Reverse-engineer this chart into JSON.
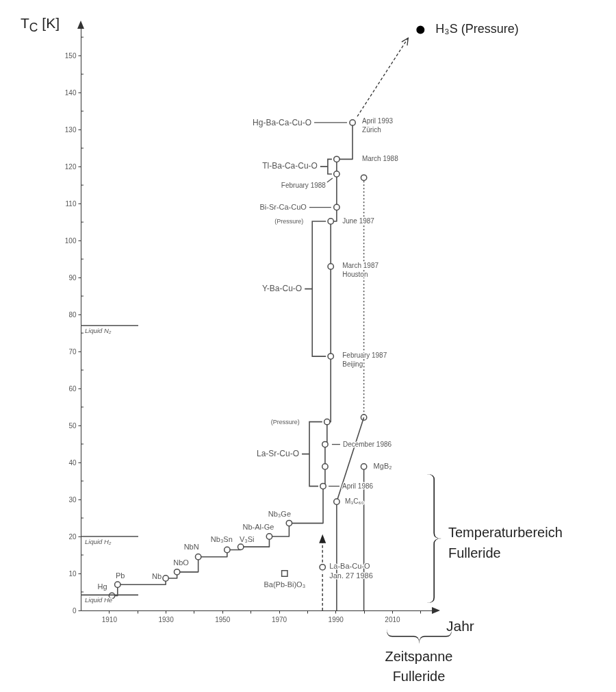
{
  "chart_data": {
    "type": "line",
    "xlabel": "Jahr",
    "ylabel": "T$_{C}$ [K]",
    "xlim": [
      1900,
      2025
    ],
    "ylim": [
      0,
      158
    ],
    "xticks": [
      1910,
      {
        "value": 1920,
        "label": null
      },
      1930,
      {
        "value": 1940,
        "label": null
      },
      1950,
      {
        "value": 1960,
        "label": null
      },
      1970,
      {
        "value": 1980,
        "label": null
      },
      1990,
      {
        "value": 2000,
        "label": null
      },
      2010,
      {
        "value": 2020,
        "label": null
      }
    ],
    "yticks": [
      0,
      {
        "value": 5,
        "label": null
      },
      10,
      {
        "value": 15,
        "label": null
      },
      20,
      {
        "value": 25,
        "label": null
      },
      30,
      {
        "value": 35,
        "label": null
      },
      40,
      {
        "value": 45,
        "label": null
      },
      50,
      {
        "value": 55,
        "label": null
      },
      60,
      {
        "value": 65,
        "label": null
      },
      70,
      {
        "value": 75,
        "label": null
      },
      80,
      {
        "value": 85,
        "label": null
      },
      90,
      {
        "value": 95,
        "label": null
      },
      100,
      {
        "value": 105,
        "label": null
      },
      110,
      {
        "value": 115,
        "label": null
      },
      120,
      {
        "value": 125,
        "label": null
      },
      130,
      {
        "value": 135,
        "label": null
      },
      140,
      {
        "value": 145,
        "label": null
      },
      150,
      {
        "value": 155,
        "label": null
      }
    ],
    "series": [
      {
        "type": "step",
        "color": "#4d4d4d",
        "marker": "circle",
        "line_style": "solid",
        "x": [
          1911,
          1913,
          1930,
          1934,
          1941.5,
          1951.7,
          1956.5,
          1966.6,
          1973.6,
          1985.6,
          1986.3,
          1986.3,
          1987,
          1988.3,
          1988.3,
          1988.3,
          1990.4,
          1990.4,
          1990.4,
          1996
        ],
        "values": [
          4,
          7,
          8.7,
          10.4,
          14.5,
          16.4,
          17.2,
          20,
          23.6,
          33.6,
          38.9,
          44.9,
          51,
          68.7,
          93,
          105.2,
          109,
          118,
          122,
          131.9
        ]
      },
      {
        "type": "line",
        "color": "#4d4d4d",
        "marker": "circle",
        "line_style": "dotted",
        "x": [
          2000,
          2000
        ],
        "values": [
          117,
          52.2
        ]
      },
      {
        "type": "line",
        "color": "#4d4d4d",
        "line_style": "solid",
        "x": [
          2000,
          1990.4
        ],
        "values": [
          52.2,
          29.4
        ]
      },
      {
        "type": "lollipop",
        "color": "#4d4d4d",
        "marker": "circle",
        "x": [
          1990.4,
          2000
        ],
        "values": [
          29.4,
          38.9
        ]
      },
      {
        "type": "line",
        "color": "#4d4d4d",
        "marker": "circle",
        "x": [
          1985.4
        ],
        "values": [
          11.7
        ]
      },
      {
        "type": "line",
        "color": "#4d4d4d",
        "marker": "square",
        "x": [
          1972
        ],
        "values": [
          10
        ]
      },
      {
        "type": "scatter",
        "color": "#000000",
        "marker": "circle",
        "x": [
          2020
        ],
        "values": [
          157
        ]
      }
    ],
    "ref_lines": [
      {
        "axis": "y",
        "value": 4.2,
        "label": "Liquid He",
        "color": "#4d4d4d"
      },
      {
        "axis": "y",
        "value": 20,
        "label": "Liquid H₂",
        "color": "#4d4d4d"
      },
      {
        "axis": "y",
        "value": 77,
        "label": "Liquid N₂",
        "color": "#4d4d4d"
      }
    ],
    "annotations": [
      {
        "text": "Hg",
        "x": 1911,
        "y": 4
      },
      {
        "text": "Pb",
        "x": 1913,
        "y": 7
      },
      {
        "text": "Nb",
        "x": 1930,
        "y": 8.7
      },
      {
        "text": "NbO",
        "x": 1934,
        "y": 10.4
      },
      {
        "text": "NbN",
        "x": 1941.5,
        "y": 14.5
      },
      {
        "text": "Nb₃Sn",
        "x": 1951.7,
        "y": 16.4
      },
      {
        "text": "V₃Si",
        "x": 1956.5,
        "y": 17.2
      },
      {
        "text": "Nb-Al-Ge",
        "x": 1966.6,
        "y": 20
      },
      {
        "text": "Nb₃Ge",
        "x": 1973.6,
        "y": 23.6
      },
      {
        "text": "Ba(Pb-Bi)O₃",
        "x": 1972,
        "y": 10
      },
      {
        "text": "La-Ba-Cu-O\nJan. 27 1986",
        "x": 1985.4,
        "y": 11.7
      },
      {
        "text": "April 1986",
        "x": 1985.6,
        "y": 33.6
      },
      "(Pressure)",
      {
        "text": "December 1986",
        "x": 1986.3,
        "y": 44.9
      },
      "La-Sr-Cu-O",
      "(Pressure)",
      {
        "text": "June 1987",
        "x": 1988.3,
        "y": 105.2
      },
      {
        "text": "March 1987\nHouston",
        "x": 1988.3,
        "y": 93
      },
      {
        "text": "February 1987\nBeijing",
        "x": 1988.3,
        "y": 68.7
      },
      "Y-Ba-Cu-O",
      "Bi-Sr-Ca-CuO",
      {
        "text": "February 1988",
        "x": 1990.4,
        "y": 118
      },
      "Tl-Ba-Ca-Cu-O",
      "March 1988",
      "Hg-Ba-Ca-Cu-O",
      {
        "text": "April 1993\nZürich",
        "x": 1996,
        "y": 131.9
      },
      {
        "text": "M₃C₆₀",
        "x": 1990.4,
        "y": 29.4
      },
      {
        "text": "MgB₂",
        "x": 2000,
        "y": 38.9
      },
      {
        "text": "H₃S (Pressure)",
        "x": 2020,
        "y": 157
      },
      "Temperaturbereich Fulleride",
      "Zeitspanne Fulleride"
    ]
  }
}
